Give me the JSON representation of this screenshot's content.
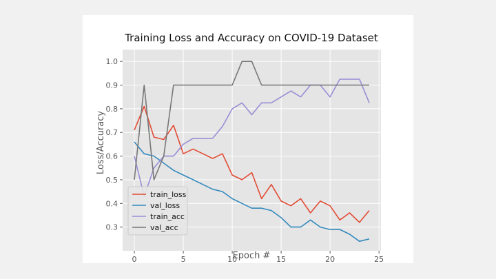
{
  "chart_data": {
    "type": "line",
    "title": "Training Loss and Accuracy on COVID-19 Dataset",
    "xlabel": "Epoch #",
    "ylabel": "Loss/Accuracy",
    "xlim": [
      -1.2,
      25.2
    ],
    "ylim": [
      0.2,
      1.05
    ],
    "xticks": [
      "0",
      "5",
      "10",
      "15",
      "20",
      "25"
    ],
    "yticks": [
      "0.3",
      "0.4",
      "0.5",
      "0.6",
      "0.7",
      "0.8",
      "0.9",
      "1.0"
    ],
    "grid": true,
    "legend_position": "lower-left",
    "x": [
      0,
      1,
      2,
      3,
      4,
      5,
      6,
      7,
      8,
      9,
      10,
      11,
      12,
      13,
      14,
      15,
      16,
      17,
      18,
      19,
      20,
      21,
      22,
      23,
      24
    ],
    "series": [
      {
        "name": "train_loss",
        "color": "#e24a33",
        "values": [
          0.71,
          0.81,
          0.68,
          0.67,
          0.73,
          0.61,
          0.63,
          0.61,
          0.59,
          0.61,
          0.52,
          0.5,
          0.53,
          0.42,
          0.48,
          0.41,
          0.39,
          0.42,
          0.36,
          0.41,
          0.39,
          0.33,
          0.36,
          0.32,
          0.37
        ]
      },
      {
        "name": "val_loss",
        "color": "#348abd",
        "values": [
          0.66,
          0.61,
          0.6,
          0.57,
          0.54,
          0.52,
          0.5,
          0.48,
          0.46,
          0.45,
          0.42,
          0.4,
          0.38,
          0.38,
          0.37,
          0.34,
          0.3,
          0.3,
          0.33,
          0.3,
          0.29,
          0.29,
          0.27,
          0.24,
          0.25
        ]
      },
      {
        "name": "train_acc",
        "color": "#988ed5",
        "values": [
          0.6,
          0.43,
          0.55,
          0.6,
          0.6,
          0.65,
          0.675,
          0.675,
          0.675,
          0.725,
          0.8,
          0.825,
          0.775,
          0.825,
          0.825,
          0.85,
          0.875,
          0.85,
          0.9,
          0.9,
          0.85,
          0.925,
          0.925,
          0.925,
          0.825
        ]
      },
      {
        "name": "val_acc",
        "color": "#777777",
        "values": [
          0.5,
          0.9,
          0.5,
          0.6,
          0.9,
          0.9,
          0.9,
          0.9,
          0.9,
          0.9,
          0.9,
          1.0,
          1.0,
          0.9,
          0.9,
          0.9,
          0.9,
          0.9,
          0.9,
          0.9,
          0.9,
          0.9,
          0.9,
          0.9,
          0.9
        ]
      }
    ]
  }
}
